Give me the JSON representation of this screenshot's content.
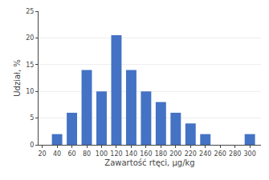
{
  "chart_data": {
    "type": "bar",
    "x": [
      20,
      40,
      60,
      80,
      100,
      120,
      140,
      160,
      180,
      200,
      220,
      240,
      260,
      280,
      300
    ],
    "values": [
      0,
      2,
      6,
      14,
      10,
      20.5,
      14,
      10,
      8,
      6,
      4,
      2,
      0,
      0,
      2
    ],
    "color": "#4472c4",
    "xlabel": "Zawartość rtęci, μg/kg",
    "ylabel": "Udział, %",
    "xlim": [
      15,
      315
    ],
    "ylim": [
      0,
      25
    ],
    "xticks": [
      20,
      40,
      60,
      80,
      100,
      120,
      140,
      160,
      180,
      200,
      220,
      240,
      260,
      280,
      300
    ],
    "yticks": [
      0,
      5,
      10,
      15,
      20,
      25
    ],
    "grid": true
  }
}
